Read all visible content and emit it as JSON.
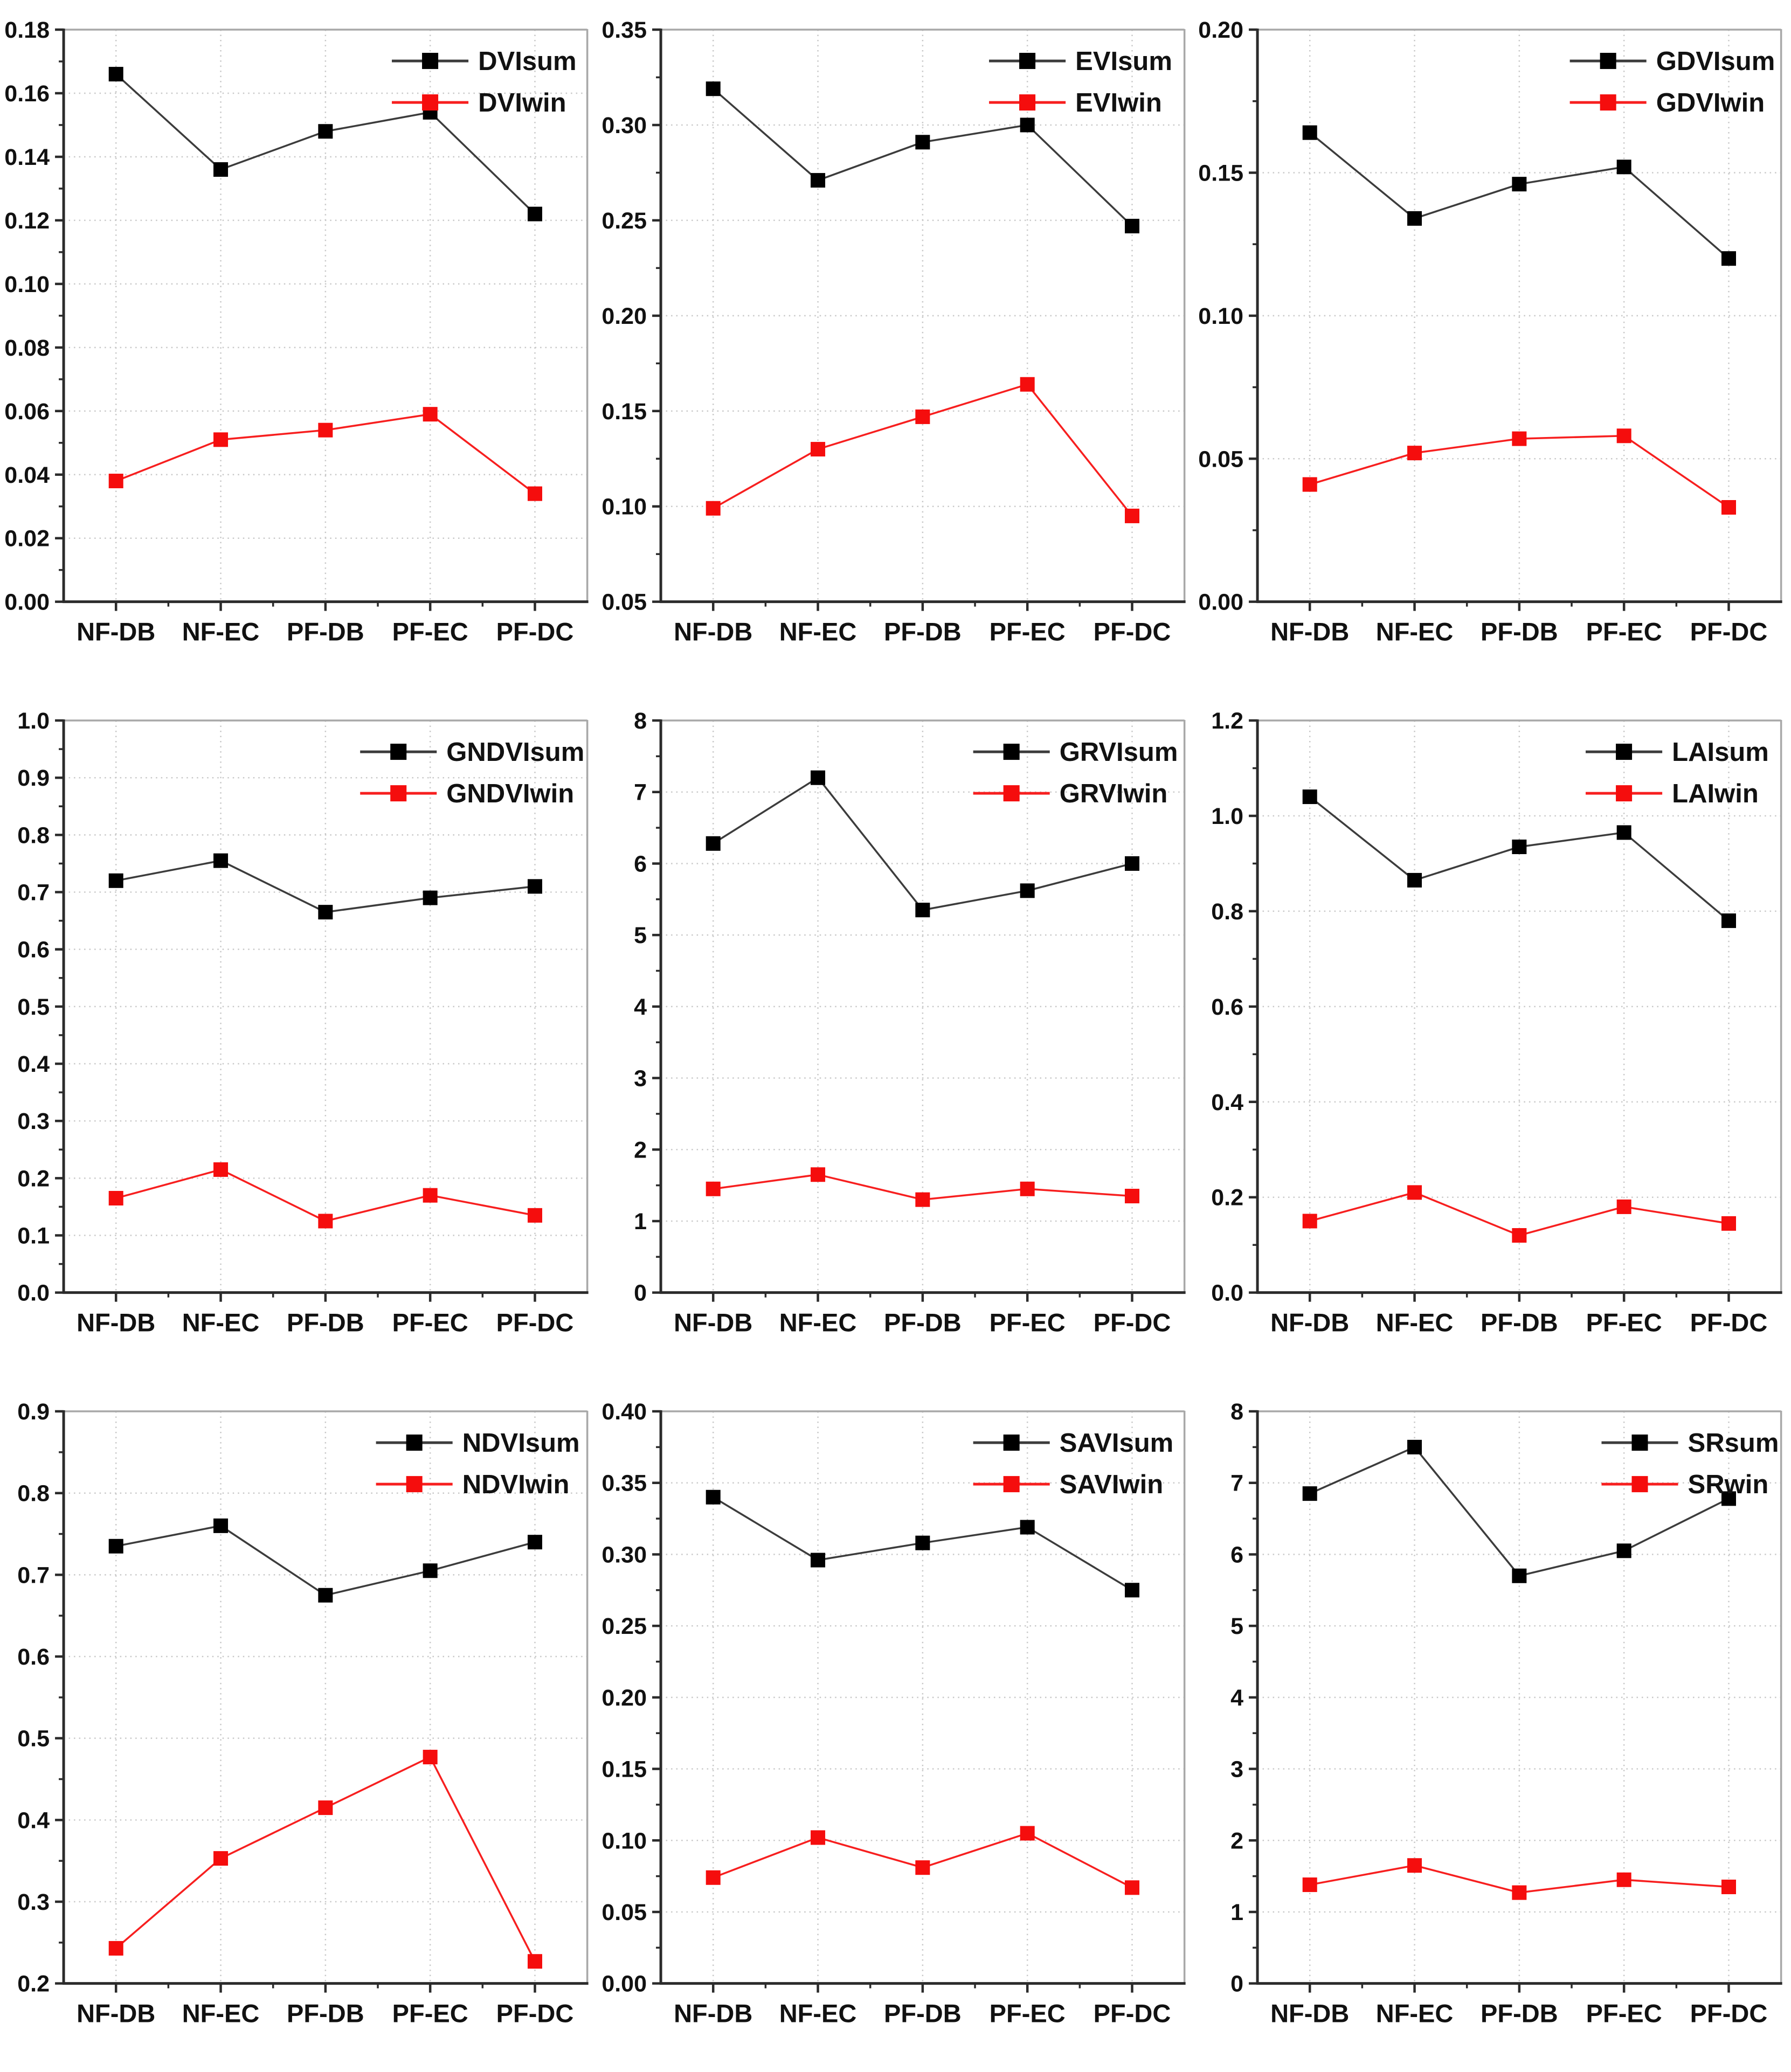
{
  "figure": {
    "background": "#ffffff",
    "grid_color": "#c8c8c8",
    "axis_color": "#2b2b2b",
    "frame_color": "#a8a8a8",
    "sum_line_color": "#3c3c3c",
    "sum_marker_color": "#000000",
    "win_line_color": "#f71f1f",
    "win_marker_color": "#f50d0d"
  },
  "chart_data": [
    {
      "type": "line",
      "metric": "DVI",
      "categories": [
        "NF-DB",
        "NF-EC",
        "PF-DB",
        "PF-EC",
        "PF-DC"
      ],
      "xlabel": "",
      "ylabel": "",
      "ylim": [
        0,
        0.18
      ],
      "ytick_step": 0.02,
      "ytick_decimals": 2,
      "grid": true,
      "legend_position": "top-right",
      "series": [
        {
          "name": "DVIsum",
          "marker": "square",
          "marker_color": "#000000",
          "line_color": "#3c3c3c",
          "values": [
            0.166,
            0.136,
            0.148,
            0.154,
            0.122
          ]
        },
        {
          "name": "DVIwin",
          "marker": "square",
          "marker_color": "#f50d0d",
          "line_color": "#f71f1f",
          "values": [
            0.038,
            0.051,
            0.054,
            0.059,
            0.034
          ]
        }
      ]
    },
    {
      "type": "line",
      "metric": "EVI",
      "categories": [
        "NF-DB",
        "NF-EC",
        "PF-DB",
        "PF-EC",
        "PF-DC"
      ],
      "xlabel": "",
      "ylabel": "",
      "ylim": [
        0.05,
        0.35
      ],
      "ytick_step": 0.05,
      "ytick_decimals": 2,
      "grid": true,
      "legend_position": "top-right",
      "series": [
        {
          "name": "EVIsum",
          "marker": "square",
          "marker_color": "#000000",
          "line_color": "#3c3c3c",
          "values": [
            0.319,
            0.271,
            0.291,
            0.3,
            0.247
          ]
        },
        {
          "name": "EVIwin",
          "marker": "square",
          "marker_color": "#f50d0d",
          "line_color": "#f71f1f",
          "values": [
            0.099,
            0.13,
            0.147,
            0.164,
            0.095
          ]
        }
      ]
    },
    {
      "type": "line",
      "metric": "GDVI",
      "categories": [
        "NF-DB",
        "NF-EC",
        "PF-DB",
        "PF-EC",
        "PF-DC"
      ],
      "xlabel": "",
      "ylabel": "",
      "ylim": [
        0,
        0.2
      ],
      "ytick_step": 0.05,
      "ytick_decimals": 2,
      "grid": true,
      "legend_position": "top-right",
      "series": [
        {
          "name": "GDVIsum",
          "marker": "square",
          "marker_color": "#000000",
          "line_color": "#3c3c3c",
          "values": [
            0.164,
            0.134,
            0.146,
            0.152,
            0.12
          ]
        },
        {
          "name": "GDVIwin",
          "marker": "square",
          "marker_color": "#f50d0d",
          "line_color": "#f71f1f",
          "values": [
            0.041,
            0.052,
            0.057,
            0.058,
            0.033
          ]
        }
      ]
    },
    {
      "type": "line",
      "metric": "GNDVI",
      "categories": [
        "NF-DB",
        "NF-EC",
        "PF-DB",
        "PF-EC",
        "PF-DC"
      ],
      "xlabel": "",
      "ylabel": "",
      "ylim": [
        0,
        1.0
      ],
      "ytick_step": 0.1,
      "ytick_decimals": 1,
      "grid": true,
      "legend_position": "top-right",
      "series": [
        {
          "name": "GNDVIsum",
          "marker": "square",
          "marker_color": "#000000",
          "line_color": "#3c3c3c",
          "values": [
            0.72,
            0.755,
            0.665,
            0.69,
            0.71
          ]
        },
        {
          "name": "GNDVIwin",
          "marker": "square",
          "marker_color": "#f50d0d",
          "line_color": "#f71f1f",
          "values": [
            0.165,
            0.215,
            0.125,
            0.17,
            0.135
          ]
        }
      ]
    },
    {
      "type": "line",
      "metric": "GRVI",
      "categories": [
        "NF-DB",
        "NF-EC",
        "PF-DB",
        "PF-EC",
        "PF-DC"
      ],
      "xlabel": "",
      "ylabel": "",
      "ylim": [
        0,
        8
      ],
      "ytick_step": 1,
      "ytick_decimals": 0,
      "grid": true,
      "legend_position": "top-right",
      "series": [
        {
          "name": "GRVIsum",
          "marker": "square",
          "marker_color": "#000000",
          "line_color": "#3c3c3c",
          "values": [
            6.28,
            7.2,
            5.35,
            5.62,
            6.0
          ]
        },
        {
          "name": "GRVIwin",
          "marker": "square",
          "marker_color": "#f50d0d",
          "line_color": "#f71f1f",
          "values": [
            1.45,
            1.65,
            1.3,
            1.45,
            1.35
          ]
        }
      ]
    },
    {
      "type": "line",
      "metric": "LAI",
      "categories": [
        "NF-DB",
        "NF-EC",
        "PF-DB",
        "PF-EC",
        "PF-DC"
      ],
      "xlabel": "",
      "ylabel": "",
      "ylim": [
        0,
        1.2
      ],
      "ytick_step": 0.2,
      "ytick_decimals": 1,
      "grid": true,
      "legend_position": "top-right",
      "series": [
        {
          "name": "LAIsum",
          "marker": "square",
          "marker_color": "#000000",
          "line_color": "#3c3c3c",
          "values": [
            1.04,
            0.865,
            0.935,
            0.965,
            0.78
          ]
        },
        {
          "name": "LAIwin",
          "marker": "square",
          "marker_color": "#f50d0d",
          "line_color": "#f71f1f",
          "values": [
            0.15,
            0.21,
            0.12,
            0.18,
            0.145
          ]
        }
      ]
    },
    {
      "type": "line",
      "metric": "NDVI",
      "categories": [
        "NF-DB",
        "NF-EC",
        "PF-DB",
        "PF-EC",
        "PF-DC"
      ],
      "xlabel": "",
      "ylabel": "",
      "ylim": [
        0.2,
        0.9
      ],
      "ytick_step": 0.1,
      "ytick_decimals": 1,
      "grid": true,
      "legend_position": "top-right",
      "series": [
        {
          "name": "NDVIsum",
          "marker": "square",
          "marker_color": "#000000",
          "line_color": "#3c3c3c",
          "values": [
            0.735,
            0.76,
            0.675,
            0.705,
            0.74
          ]
        },
        {
          "name": "NDVIwin",
          "marker": "square",
          "marker_color": "#f50d0d",
          "line_color": "#f71f1f",
          "values": [
            0.243,
            0.353,
            0.415,
            0.477,
            0.227
          ]
        }
      ]
    },
    {
      "type": "line",
      "metric": "SAVI",
      "categories": [
        "NF-DB",
        "NF-EC",
        "PF-DB",
        "PF-EC",
        "PF-DC"
      ],
      "xlabel": "",
      "ylabel": "",
      "ylim": [
        0,
        0.4
      ],
      "ytick_step": 0.05,
      "ytick_decimals": 2,
      "grid": true,
      "legend_position": "top-right",
      "series": [
        {
          "name": "SAVIsum",
          "marker": "square",
          "marker_color": "#000000",
          "line_color": "#3c3c3c",
          "values": [
            0.34,
            0.296,
            0.308,
            0.319,
            0.275
          ]
        },
        {
          "name": "SAVIwin",
          "marker": "square",
          "marker_color": "#f50d0d",
          "line_color": "#f71f1f",
          "values": [
            0.074,
            0.102,
            0.081,
            0.105,
            0.067
          ]
        }
      ]
    },
    {
      "type": "line",
      "metric": "SR",
      "categories": [
        "NF-DB",
        "NF-EC",
        "PF-DB",
        "PF-EC",
        "PF-DC"
      ],
      "xlabel": "",
      "ylabel": "",
      "ylim": [
        0,
        8
      ],
      "ytick_step": 1,
      "ytick_decimals": 0,
      "grid": true,
      "legend_position": "top-right",
      "series": [
        {
          "name": "SRsum",
          "marker": "square",
          "marker_color": "#000000",
          "line_color": "#3c3c3c",
          "values": [
            6.85,
            7.5,
            5.7,
            6.05,
            6.78
          ]
        },
        {
          "name": "SRwin",
          "marker": "square",
          "marker_color": "#f50d0d",
          "line_color": "#f71f1f",
          "values": [
            1.38,
            1.65,
            1.27,
            1.45,
            1.35
          ]
        }
      ]
    }
  ]
}
